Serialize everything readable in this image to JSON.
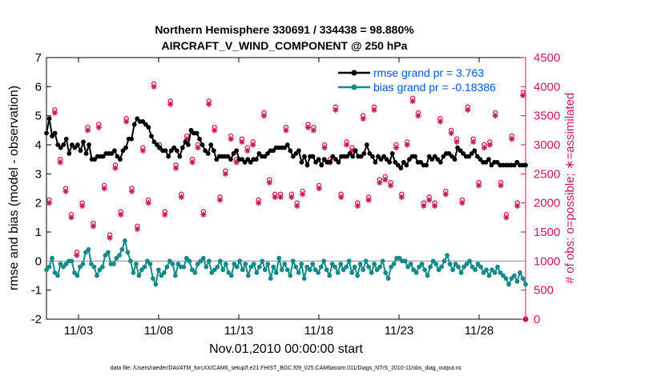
{
  "chart_data": {
    "type": "line",
    "title_line1": "Northern Hemisphere 330691 / 334438 = 98.880%",
    "title_line2": "AIRCRAFT_V_WIND_COMPONENT @ 250 hPa",
    "xlabel": "Nov.01,2010 00:00:00 start",
    "ylabel_left": "rmse and bias (model - observation)",
    "ylabel_right": "# of obs: o=possible; ∗=assimilated",
    "footer": "data file: /Users/raeder/DAI/ATM_forcXX/CAM6_setup/f.e21.FHIST_BGC.f09_025.CAM6assim.011/Diags_NTrS_2010-11/obs_diag_output.nc",
    "x_tick_labels": [
      "11/03",
      "11/08",
      "11/13",
      "11/18",
      "11/23",
      "11/28"
    ],
    "x_tick_days": [
      3,
      8,
      13,
      18,
      23,
      28
    ],
    "xlim_days": [
      1.0,
      30.9
    ],
    "ylim_left": [
      -2,
      7
    ],
    "y_ticks_left": [
      "-2",
      "-1",
      "0",
      "1",
      "2",
      "3",
      "4",
      "5",
      "6",
      "7"
    ],
    "ylim_right": [
      0,
      4500
    ],
    "y_ticks_right": [
      "0",
      "500",
      "1000",
      "1500",
      "2000",
      "2500",
      "3000",
      "3500",
      "4000",
      "4500"
    ],
    "legend": [
      {
        "label": "rmse grand pr = 3.763",
        "color": "#000000"
      },
      {
        "label": "bias grand pr = -0.18386",
        "color": "#138a87"
      }
    ],
    "colors": {
      "rmse": "#000000",
      "bias": "#138a87",
      "obs": "#cc1a55",
      "zero_line": "#aaaaaa"
    },
    "series": [
      {
        "name": "rmse",
        "values": [
          4.4,
          4.9,
          4.3,
          4.4,
          4.0,
          3.9,
          4.0,
          4.2,
          3.7,
          4.0,
          3.9,
          4.0,
          3.8,
          4.1,
          3.7,
          4.0,
          3.5,
          3.5,
          3.6,
          3.6,
          3.6,
          3.7,
          3.7,
          3.7,
          3.8,
          3.6,
          3.5,
          3.8,
          3.9,
          4.2,
          4.2,
          4.7,
          4.9,
          4.8,
          4.8,
          4.7,
          4.6,
          4.3,
          4.1,
          4.0,
          3.9,
          3.8,
          3.8,
          3.6,
          3.8,
          3.9,
          3.8,
          3.6,
          3.9,
          4.1,
          4.0,
          4.5,
          4.4,
          4.4,
          4.2,
          4.0,
          3.8,
          3.7,
          4.0,
          3.8,
          3.5,
          3.6,
          3.6,
          3.6,
          3.6,
          3.5,
          3.7,
          3.8,
          3.5,
          3.5,
          3.4,
          3.5,
          3.4,
          3.5,
          3.5,
          3.7,
          3.6,
          3.6,
          3.7,
          3.8,
          3.8,
          3.9,
          3.9,
          3.9,
          3.9,
          4.0,
          3.8,
          3.6,
          3.7,
          3.8,
          3.4,
          3.6,
          3.3,
          3.6,
          3.6,
          3.4,
          3.5,
          3.3,
          3.5,
          3.4,
          3.4,
          3.6,
          3.5,
          3.4,
          3.6,
          3.6,
          3.6,
          3.7,
          3.6,
          3.8,
          3.6,
          3.6,
          3.7,
          4.0,
          3.7,
          3.6,
          3.4,
          3.6,
          3.5,
          3.6,
          3.5,
          3.4,
          3.7,
          3.4,
          3.3,
          3.2,
          3.4,
          3.3,
          3.5,
          3.6,
          3.6,
          3.4,
          3.4,
          3.3,
          3.3,
          3.6,
          3.5,
          3.6,
          3.5,
          3.4,
          3.6,
          3.7,
          3.7,
          3.6,
          3.5,
          3.9,
          3.8,
          3.7,
          3.6,
          3.6,
          3.7,
          3.8,
          3.6,
          3.5,
          3.4,
          3.4,
          3.5,
          3.3,
          3.4,
          3.4,
          3.3,
          3.3,
          3.3,
          3.3,
          3.3,
          3.3,
          3.4,
          3.3,
          3.3,
          3.3
        ]
      },
      {
        "name": "bias",
        "values": [
          -0.3,
          -0.2,
          0.1,
          -0.4,
          -0.5,
          -0.1,
          -0.2,
          -0.1,
          0.0,
          0.0,
          -0.4,
          -0.5,
          -0.2,
          -0.1,
          0.3,
          0.4,
          -0.1,
          -0.2,
          -0.5,
          -0.3,
          -0.2,
          0.2,
          0.3,
          -0.1,
          -0.1,
          0.1,
          0.2,
          0.4,
          0.7,
          0.3,
          0.0,
          -0.4,
          -0.1,
          -0.5,
          -0.3,
          -0.2,
          0.0,
          -0.1,
          -0.6,
          -0.8,
          -0.3,
          -0.5,
          -0.4,
          -0.2,
          0.0,
          -0.1,
          -0.5,
          -0.1,
          -0.2,
          -0.2,
          0.1,
          0.0,
          -0.3,
          -0.4,
          -0.1,
          0.0,
          0.1,
          -0.2,
          0.0,
          -0.4,
          -0.3,
          -0.2,
          0.0,
          -0.3,
          -0.1,
          -0.4,
          -0.5,
          -0.1,
          -0.2,
          0.0,
          -0.3,
          -0.1,
          -0.5,
          -0.2,
          -0.1,
          -0.4,
          -0.2,
          0.0,
          -0.3,
          -0.1,
          -0.6,
          -0.2,
          -0.4,
          0.1,
          -0.3,
          -0.1,
          -0.3,
          -0.5,
          0.0,
          -0.2,
          -0.4,
          -0.1,
          -0.6,
          -0.2,
          -0.3,
          -0.1,
          -0.3,
          -0.4,
          -0.2,
          0.0,
          -0.3,
          -0.5,
          -0.1,
          -0.2,
          -0.4,
          -0.1,
          -0.3,
          -0.2,
          0.0,
          -0.4,
          -0.2,
          -0.5,
          -0.1,
          -0.3,
          0.0,
          -0.2,
          -0.4,
          -0.1,
          -0.3,
          -0.2,
          0.0,
          -0.4,
          -0.6,
          -0.2,
          -0.1,
          0.1,
          0.1,
          0.0,
          0.0,
          -0.2,
          -0.1,
          -0.3,
          -0.4,
          -0.2,
          -0.1,
          -0.3,
          -0.5,
          -0.2,
          0.0,
          -0.1,
          -0.3,
          -0.2,
          0.0,
          0.2,
          -0.1,
          -0.3,
          -0.1,
          -0.2,
          -0.4,
          -0.2,
          -0.1,
          0.0,
          -0.2,
          -0.3,
          -0.1,
          -0.2,
          -0.4,
          -0.3,
          -0.5,
          -0.3,
          -0.4,
          -0.2,
          -0.4,
          -0.5,
          -0.6,
          -0.8,
          -0.6,
          -0.5,
          -0.7,
          -0.4,
          -0.6,
          -0.8
        ]
      },
      {
        "name": "obs_possible",
        "axis": "right",
        "values": [
          2050,
          3600,
          2750,
          2250,
          1800,
          1150,
          2000,
          3300,
          1650,
          3350,
          2300,
          1450,
          2650,
          1850,
          3450,
          2250,
          1600,
          2950,
          2050,
          4050,
          3000,
          1850,
          3750,
          2650,
          2150,
          3150,
          2750,
          3000,
          1850,
          3750,
          3300,
          2100,
          2550,
          3150,
          2750,
          3100,
          2950,
          3050,
          2050,
          3550,
          2400,
          2150,
          2150,
          3300,
          2150,
          2000,
          2200,
          3350,
          3300,
          2300,
          3000,
          2750,
          3650,
          2150,
          3050,
          2950,
          2000,
          3500,
          2100,
          3650,
          2400,
          2450,
          2350,
          3000,
          2150,
          3050,
          3800,
          3550,
          2000,
          2100,
          2000,
          3450,
          2200,
          3250,
          3100,
          2050,
          3650,
          3100,
          2350,
          3000,
          3050,
          3550,
          2350,
          1800,
          3150,
          2000,
          3900
        ]
      },
      {
        "name": "obs_assimilated",
        "axis": "right",
        "values": [
          2000,
          3550,
          2700,
          2200,
          1750,
          1100,
          1950,
          3250,
          1600,
          3300,
          2250,
          1400,
          2600,
          1800,
          3400,
          2200,
          1550,
          2900,
          2000,
          4000,
          2950,
          1800,
          3700,
          2600,
          2100,
          3100,
          2700,
          2950,
          1800,
          3700,
          3250,
          2050,
          2500,
          3100,
          2700,
          3050,
          2900,
          3000,
          2000,
          3500,
          2350,
          2100,
          2100,
          3250,
          2100,
          1950,
          2150,
          3300,
          3250,
          2250,
          2950,
          2700,
          3600,
          2100,
          3000,
          2900,
          1950,
          3450,
          2050,
          3600,
          2350,
          2400,
          2300,
          2950,
          2100,
          3000,
          3750,
          3500,
          1950,
          2050,
          1950,
          3400,
          2150,
          3200,
          3050,
          2000,
          3600,
          3050,
          2300,
          2950,
          3000,
          3500,
          2300,
          1750,
          3100,
          1950,
          3850
        ]
      }
    ]
  }
}
